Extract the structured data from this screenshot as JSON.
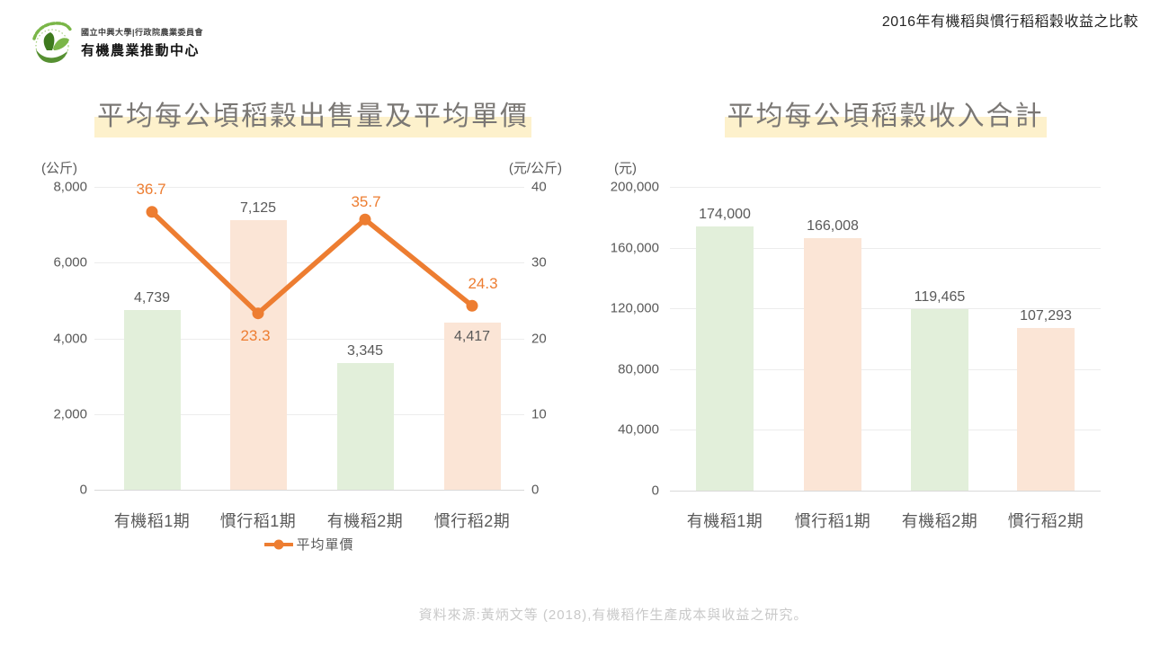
{
  "header": {
    "logo_org": "國立中興大學|行政院農業委員會",
    "logo_center": "有機農業推動中心",
    "page_title": "2016年有機稻與慣行稻稻穀收益之比較"
  },
  "chart_data": [
    {
      "type": "bar",
      "title": "平均每公頃稻穀出售量及平均單價",
      "categories": [
        "有機稻1期",
        "慣行稻1期",
        "有機稻2期",
        "慣行稻2期"
      ],
      "series": [
        {
          "type": "bar",
          "axis": "left",
          "values": [
            4739,
            7125,
            3345,
            4417
          ],
          "labels": [
            "4,739",
            "7,125",
            "3,345",
            "4,417"
          ],
          "colors": [
            "#e2efda",
            "#fbe5d6",
            "#e2efda",
            "#fbe5d6"
          ]
        },
        {
          "name": "平均單價",
          "type": "line",
          "axis": "right",
          "values": [
            36.7,
            23.3,
            35.7,
            24.3
          ],
          "labels": [
            "36.7",
            "23.3",
            "35.7",
            "24.3"
          ],
          "color": "#ed7d31"
        }
      ],
      "left_axis": {
        "unit": "(公斤)",
        "min": 0,
        "max": 8000,
        "ticks": [
          "8,000",
          "6,000",
          "4,000",
          "2,000",
          "0"
        ]
      },
      "right_axis": {
        "unit": "(元/公斤)",
        "min": 0,
        "max": 40,
        "ticks": [
          "40",
          "30",
          "20",
          "10",
          "0"
        ]
      },
      "grid": "on",
      "legend_position": "bottom"
    },
    {
      "type": "bar",
      "title": "平均每公頃稻穀收入合計",
      "categories": [
        "有機稻1期",
        "慣行稻1期",
        "有機稻2期",
        "慣行稻2期"
      ],
      "series": [
        {
          "type": "bar",
          "axis": "left",
          "values": [
            174000,
            166008,
            119465,
            107293
          ],
          "labels": [
            "174,000",
            "166,008",
            "119,465",
            "107,293"
          ],
          "colors": [
            "#e2efda",
            "#fbe5d6",
            "#e2efda",
            "#fbe5d6"
          ]
        }
      ],
      "left_axis": {
        "unit": "(元)",
        "min": 0,
        "max": 200000,
        "ticks": [
          "200,000",
          "160,000",
          "120,000",
          "80,000",
          "40,000",
          "0"
        ]
      },
      "grid": "on",
      "legend_position": "none"
    }
  ],
  "footer": {
    "source": "資料來源:黃炳文等 (2018),有機稻作生產成本與收益之研究。"
  },
  "colors": {
    "bar_green": "#e2efda",
    "bar_peach": "#fbe5d6",
    "line_orange": "#ed7d31",
    "title_highlight": "#fdf1cc",
    "title_text": "#7a7774",
    "axis_text": "#595959",
    "gridline": "#ececec",
    "axis_line": "#d9d9d9",
    "source_text": "#c9c9c9",
    "logo_green": "#6fa83c"
  }
}
